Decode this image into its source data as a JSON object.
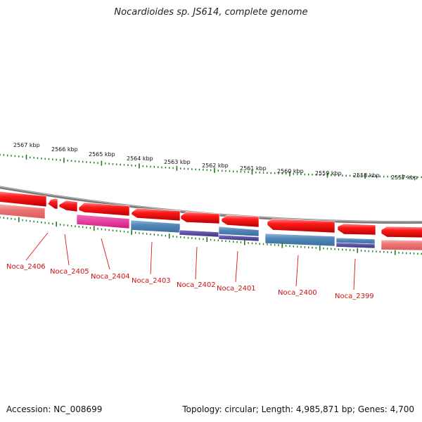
{
  "title": "Nocardioides sp. JS614, complete genome",
  "footer": {
    "accession": "Accession: NC_008699",
    "stats": "Topology: circular; Length: 4,985,871 bp; Genes: 4,700"
  },
  "colors": {
    "forward_cds": "#e4141e",
    "forward_cds_light": "#f07e7e",
    "reverse_cds": "#4f86b5",
    "reverse_dark": "#4a3f8f",
    "magenta": "#e0268f",
    "backbone": "#8a8a8a",
    "tick": "#1a7a1a",
    "label": "#cc1111"
  },
  "ruler": {
    "units": "kbp",
    "labels": [
      "2567 kbp",
      "2566 kbp",
      "2565 kbp",
      "2564 kbp",
      "2563 kbp",
      "2562 kbp",
      "2561 kbp",
      "2560 kbp",
      "2559 kbp",
      "2558 kbp",
      "2557 kbp"
    ]
  },
  "genes": [
    {
      "label": "Noca_2406"
    },
    {
      "label": "Noca_2405"
    },
    {
      "label": "Noca_2404"
    },
    {
      "label": "Noca_2403"
    },
    {
      "label": "Noca_2402"
    },
    {
      "label": "Noca_2401"
    },
    {
      "label": "Noca_2400"
    },
    {
      "label": "Noca_2399"
    }
  ]
}
